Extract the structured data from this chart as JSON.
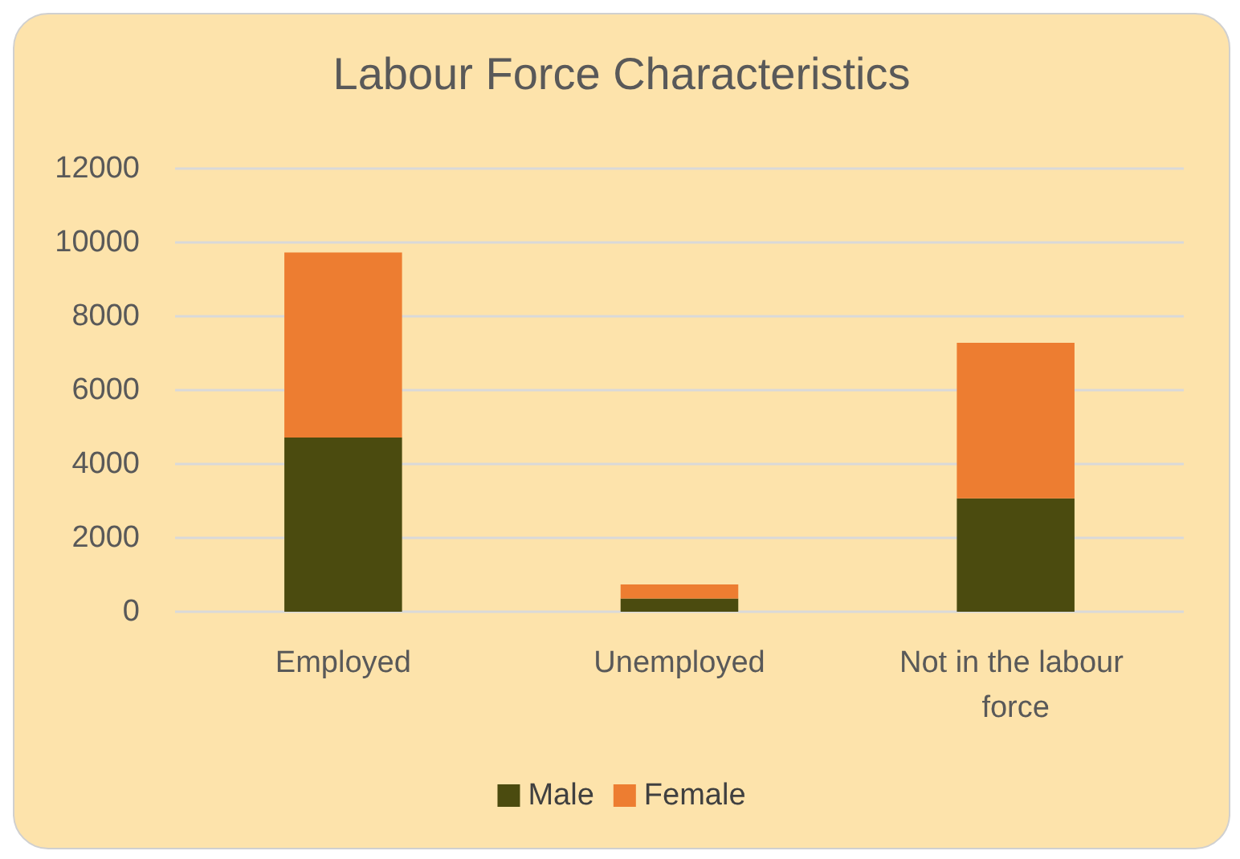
{
  "chart_data": {
    "type": "bar",
    "title": "Labour Force Characteristics",
    "categories": [
      "Employed",
      "Unemployed",
      "Not in the labour force"
    ],
    "stacked": true,
    "series": [
      {
        "name": "Male",
        "color": "#4b4b0f",
        "values": [
          4720,
          360,
          3070
        ]
      },
      {
        "name": "Female",
        "color": "#ed7d31",
        "values": [
          5010,
          380,
          4210
        ]
      }
    ],
    "ylim": [
      0,
      12000
    ],
    "yticks": [
      0,
      2000,
      4000,
      6000,
      8000,
      10000,
      12000
    ],
    "grid": "y",
    "legend": "bottom"
  }
}
